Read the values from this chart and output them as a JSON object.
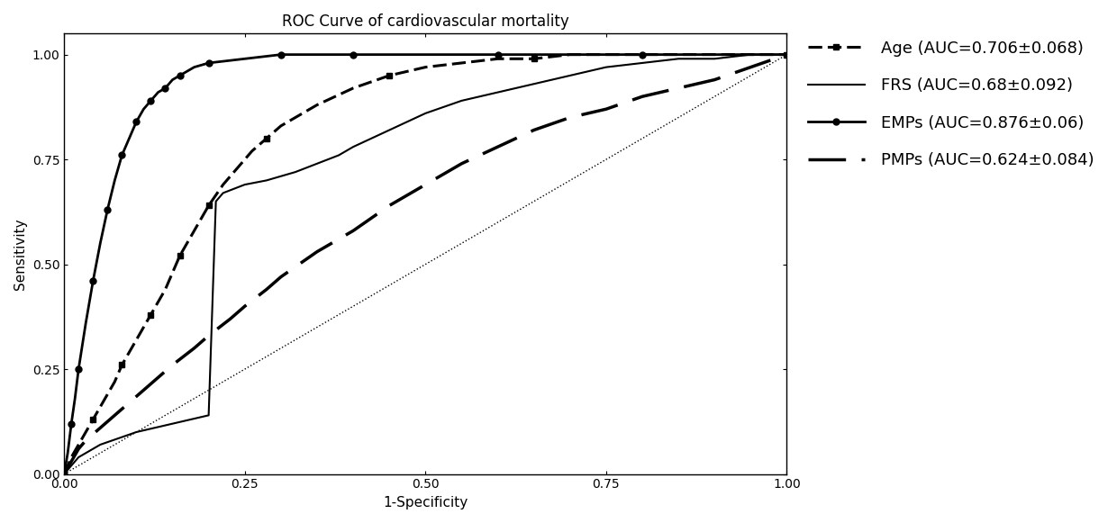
{
  "title": "ROC Curve of cardiovascular mortality",
  "xlabel": "1-Specificity",
  "ylabel": "Sensitivity",
  "xlim": [
    0.0,
    1.0
  ],
  "ylim": [
    0.0,
    1.05
  ],
  "xticks": [
    0.0,
    0.25,
    0.5,
    0.75,
    1.0
  ],
  "yticks": [
    0.0,
    0.25,
    0.5,
    0.75,
    1.0
  ],
  "curves": {
    "Age": {
      "label": "Age (AUC=0.706±0.068)",
      "x": [
        0.0,
        0.01,
        0.02,
        0.03,
        0.04,
        0.05,
        0.06,
        0.07,
        0.08,
        0.09,
        0.1,
        0.11,
        0.12,
        0.13,
        0.14,
        0.15,
        0.16,
        0.17,
        0.18,
        0.19,
        0.2,
        0.22,
        0.24,
        0.26,
        0.28,
        0.3,
        0.35,
        0.4,
        0.45,
        0.5,
        0.55,
        0.6,
        0.65,
        0.7,
        0.8,
        0.9,
        1.0
      ],
      "y": [
        0.0,
        0.04,
        0.07,
        0.1,
        0.13,
        0.16,
        0.19,
        0.22,
        0.26,
        0.29,
        0.32,
        0.35,
        0.38,
        0.41,
        0.44,
        0.48,
        0.52,
        0.55,
        0.58,
        0.61,
        0.64,
        0.69,
        0.73,
        0.77,
        0.8,
        0.83,
        0.88,
        0.92,
        0.95,
        0.97,
        0.98,
        0.99,
        0.99,
        1.0,
        1.0,
        1.0,
        1.0
      ]
    },
    "FRS": {
      "label": "FRS (AUC=0.68±0.092)",
      "x": [
        0.0,
        0.01,
        0.02,
        0.05,
        0.1,
        0.15,
        0.2,
        0.21,
        0.22,
        0.25,
        0.28,
        0.3,
        0.32,
        0.35,
        0.38,
        0.4,
        0.45,
        0.5,
        0.55,
        0.6,
        0.65,
        0.7,
        0.75,
        0.8,
        0.85,
        0.9,
        0.95,
        1.0
      ],
      "y": [
        0.0,
        0.02,
        0.04,
        0.07,
        0.1,
        0.12,
        0.14,
        0.65,
        0.67,
        0.69,
        0.7,
        0.71,
        0.72,
        0.74,
        0.76,
        0.78,
        0.82,
        0.86,
        0.89,
        0.91,
        0.93,
        0.95,
        0.97,
        0.98,
        0.99,
        0.99,
        1.0,
        1.0
      ]
    },
    "EMPs": {
      "label": "EMPs (AUC=0.876±0.06)",
      "x": [
        0.0,
        0.005,
        0.01,
        0.015,
        0.02,
        0.03,
        0.04,
        0.05,
        0.06,
        0.07,
        0.08,
        0.09,
        0.1,
        0.11,
        0.12,
        0.13,
        0.14,
        0.15,
        0.16,
        0.18,
        0.2,
        0.25,
        0.3,
        0.35,
        0.4,
        0.5,
        0.6,
        0.7,
        0.8,
        1.0
      ],
      "y": [
        0.0,
        0.05,
        0.12,
        0.18,
        0.25,
        0.36,
        0.46,
        0.55,
        0.63,
        0.7,
        0.76,
        0.8,
        0.84,
        0.87,
        0.89,
        0.91,
        0.92,
        0.94,
        0.95,
        0.97,
        0.98,
        0.99,
        1.0,
        1.0,
        1.0,
        1.0,
        1.0,
        1.0,
        1.0,
        1.0
      ]
    },
    "PMPs": {
      "label": "PMPs (AUC=0.624±0.084)",
      "x": [
        0.0,
        0.01,
        0.02,
        0.03,
        0.05,
        0.07,
        0.09,
        0.11,
        0.13,
        0.15,
        0.18,
        0.2,
        0.23,
        0.25,
        0.28,
        0.3,
        0.35,
        0.4,
        0.45,
        0.5,
        0.55,
        0.6,
        0.65,
        0.7,
        0.75,
        0.8,
        0.85,
        0.9,
        0.95,
        1.0
      ],
      "y": [
        0.0,
        0.03,
        0.06,
        0.08,
        0.11,
        0.14,
        0.17,
        0.2,
        0.23,
        0.26,
        0.3,
        0.33,
        0.37,
        0.4,
        0.44,
        0.47,
        0.53,
        0.58,
        0.64,
        0.69,
        0.74,
        0.78,
        0.82,
        0.85,
        0.87,
        0.9,
        0.92,
        0.94,
        0.97,
        1.0
      ]
    }
  },
  "background_color": "#ffffff",
  "title_fontsize": 12,
  "label_fontsize": 11,
  "tick_fontsize": 10,
  "legend_fontsize": 13
}
